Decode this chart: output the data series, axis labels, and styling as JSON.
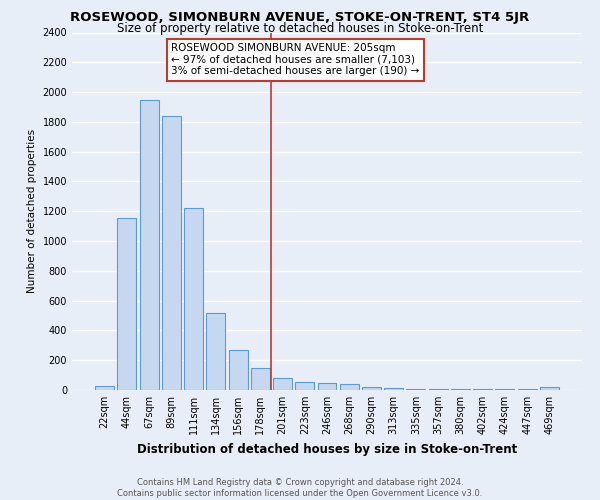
{
  "title": "ROSEWOOD, SIMONBURN AVENUE, STOKE-ON-TRENT, ST4 5JR",
  "subtitle": "Size of property relative to detached houses in Stoke-on-Trent",
  "xlabel": "Distribution of detached houses by size in Stoke-on-Trent",
  "ylabel": "Number of detached properties",
  "categories": [
    "22sqm",
    "44sqm",
    "67sqm",
    "89sqm",
    "111sqm",
    "134sqm",
    "156sqm",
    "178sqm",
    "201sqm",
    "223sqm",
    "246sqm",
    "268sqm",
    "290sqm",
    "313sqm",
    "335sqm",
    "357sqm",
    "380sqm",
    "402sqm",
    "424sqm",
    "447sqm",
    "469sqm"
  ],
  "values": [
    30,
    1155,
    1950,
    1840,
    1220,
    520,
    270,
    150,
    80,
    55,
    50,
    40,
    20,
    15,
    10,
    8,
    7,
    5,
    5,
    5,
    20
  ],
  "bar_color": "#c5d8f0",
  "bar_edge_color": "#5b9bd5",
  "marker_line_index": 8,
  "marker_label": "ROSEWOOD SIMONBURN AVENUE: 205sqm",
  "annotation_line1": "← 97% of detached houses are smaller (7,103)",
  "annotation_line2": "3% of semi-detached houses are larger (190) →",
  "marker_line_color": "#c0392b",
  "ylim": [
    0,
    2400
  ],
  "yticks": [
    0,
    200,
    400,
    600,
    800,
    1000,
    1200,
    1400,
    1600,
    1800,
    2000,
    2200,
    2400
  ],
  "footer_line1": "Contains HM Land Registry data © Crown copyright and database right 2024.",
  "footer_line2": "Contains public sector information licensed under the Open Government Licence v3.0.",
  "bg_color": "#e8eef8",
  "grid_color": "#ffffff",
  "title_fontsize": 9.5,
  "subtitle_fontsize": 8.5,
  "xlabel_fontsize": 8.5,
  "ylabel_fontsize": 7.5,
  "footer_fontsize": 6.0,
  "tick_fontsize": 7.0,
  "annot_fontsize": 7.5
}
